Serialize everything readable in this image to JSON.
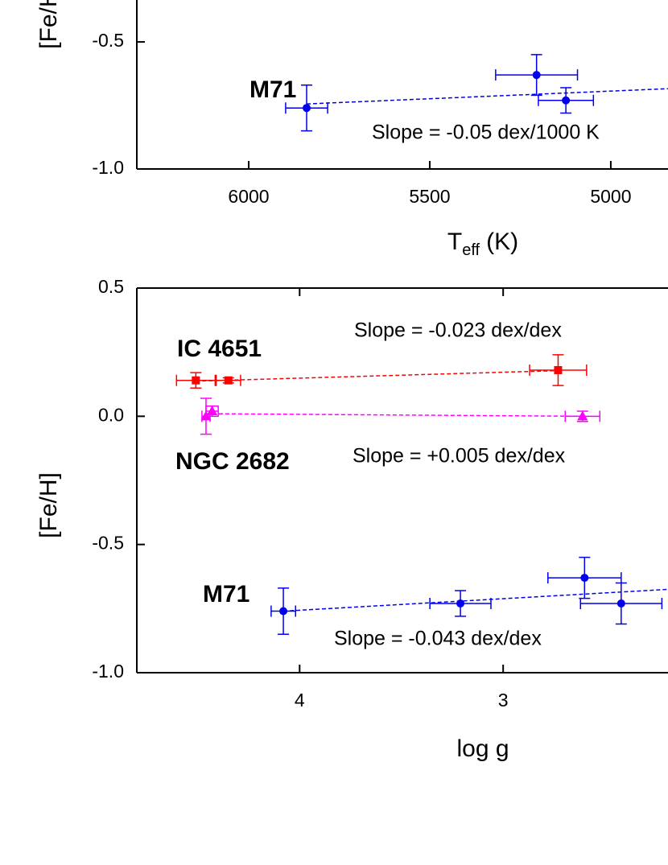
{
  "chart_data": [
    {
      "type": "scatter",
      "ylabel": "[Fe/H]",
      "xlabel": {
        "main": "T",
        "sub": "eff",
        "unit": "(K)"
      },
      "xlim": [
        6309,
        4842
      ],
      "ylim": [
        -1.0,
        -0.335
      ],
      "xticks": [
        6000,
        5500,
        5000
      ],
      "yticks": [
        {
          "value": -1.0,
          "label": "-1.0"
        },
        -0.5
      ],
      "series": [
        {
          "name": "M71",
          "color": "#0000ee",
          "marker": "circle",
          "x": [
            5840,
            5205,
            5124
          ],
          "values": [
            -0.76,
            -0.63,
            -0.73
          ],
          "xerr": [
            58,
            113,
            76
          ],
          "yerr": [
            0.09,
            0.08,
            0.05
          ],
          "fit_x": [
            5840,
            4842
          ],
          "fit_y": [
            -0.744,
            -0.684
          ]
        }
      ],
      "annotations": [
        "Slope = -0.05 dex/1000 K"
      ]
    },
    {
      "type": "scatter",
      "ylabel": "[Fe/H]",
      "xlabel": {
        "main": "log g"
      },
      "xlim": [
        4.8,
        2.19
      ],
      "ylim": [
        -1.0,
        0.5
      ],
      "xticks": [
        4,
        3
      ],
      "yticks": [
        {
          "value": -1.0,
          "label": "-1.0"
        },
        -0.5,
        {
          "value": 0.0,
          "label": "0.0"
        },
        0.5
      ],
      "series": [
        {
          "name": "IC 4651",
          "color": "#ff0000",
          "marker": "square",
          "x": [
            4.51,
            4.35,
            2.73
          ],
          "values": [
            0.14,
            0.14,
            0.18
          ],
          "xerr": [
            0.095,
            0.06,
            0.14
          ],
          "yerr": [
            0.03,
            0.01,
            0.06
          ],
          "fit_x": [
            4.51,
            2.73
          ],
          "fit_y": [
            0.137,
            0.178
          ]
        },
        {
          "name": "NGC 2682",
          "color": "#ff00ff",
          "marker": "triangle",
          "x": [
            4.46,
            4.43,
            2.61
          ],
          "values": [
            0.0,
            0.02,
            0.0
          ],
          "xerr": [
            0.02,
            0.03,
            0.085
          ],
          "yerr": [
            0.07,
            0.02,
            0.02
          ],
          "fit_x": [
            4.46,
            2.61
          ],
          "fit_y": [
            0.01,
            0.0
          ]
        },
        {
          "name": "M71",
          "color": "#0000ee",
          "marker": "circle",
          "x": [
            4.08,
            3.21,
            2.6,
            2.42
          ],
          "values": [
            -0.76,
            -0.73,
            -0.63,
            -0.73
          ],
          "xerr": [
            0.06,
            0.15,
            0.18,
            0.2
          ],
          "yerr": [
            0.09,
            0.05,
            0.08,
            0.08
          ],
          "fit_x": [
            4.08,
            2.19
          ],
          "fit_y": [
            -0.76,
            -0.675
          ]
        }
      ],
      "annotations": [
        "Slope = -0.023 dex/dex",
        "Slope = +0.005 dex/dex",
        "Slope = -0.043 dex/dex"
      ]
    }
  ]
}
